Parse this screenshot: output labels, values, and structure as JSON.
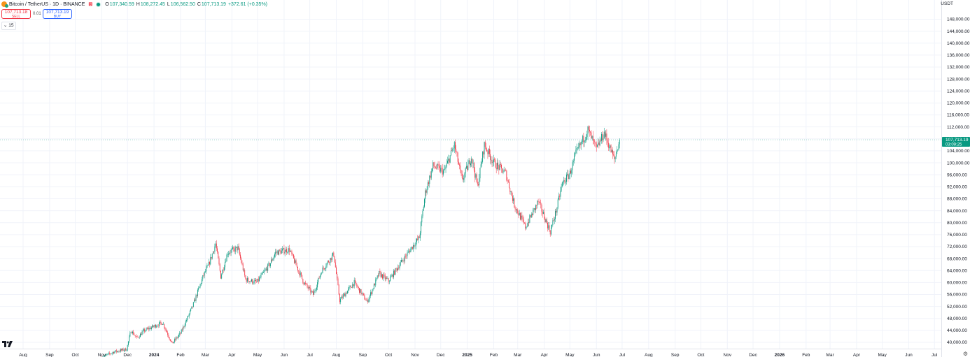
{
  "header": {
    "symbol": "Bitcoin / TetherUS · 1D · BINANCE",
    "o_label": "O",
    "o_value": "107,340.59",
    "h_label": "H",
    "h_value": "108,272.45",
    "l_label": "L",
    "l_value": "106,562.50",
    "c_label": "C",
    "c_value": "107,713.19",
    "change": "+372.61 (+0.35%)"
  },
  "trade": {
    "sell_price": "107,713.18",
    "sell_label": "SELL",
    "spread": "0.01",
    "buy_price": "107,713.19",
    "buy_label": "BUY"
  },
  "indicator": {
    "label": "15"
  },
  "price_axis": {
    "currency": "USDT",
    "last_price": "107,713.19",
    "countdown": "03:09:25"
  },
  "colors": {
    "up": "#089981",
    "down": "#f23645",
    "last_label": "#089981"
  },
  "chart_data": {
    "type": "candlestick",
    "ylim": [
      38000,
      150000
    ],
    "y_ticks": [
      "40,000.00",
      "44,000.00",
      "48,000.00",
      "52,000.00",
      "56,000.00",
      "60,000.00",
      "64,000.00",
      "68,000.00",
      "72,000.00",
      "76,000.00",
      "80,000.00",
      "84,000.00",
      "88,000.00",
      "92,000.00",
      "96,000.00",
      "100,000.00",
      "104,000.00",
      "108,000.00",
      "112,000.00",
      "116,000.00",
      "120,000.00",
      "124,000.00",
      "128,000.00",
      "132,000.00",
      "136,000.00",
      "140,000.00",
      "144,000.00",
      "148,000.00"
    ],
    "x_ticks": [
      "Aug",
      "Sep",
      "Oct",
      "Nov",
      "Dec",
      "2024",
      "Feb",
      "Mar",
      "Apr",
      "May",
      "Jun",
      "Jul",
      "Aug",
      "Sep",
      "Oct",
      "Nov",
      "Dec",
      "2025",
      "Feb",
      "Mar",
      "Apr",
      "May",
      "Jun",
      "Jul",
      "Aug",
      "Sep",
      "Oct",
      "Nov",
      "Dec",
      "2026",
      "Feb",
      "Mar",
      "Apr",
      "May",
      "Jun",
      "Jul"
    ],
    "x_tick_bold": [
      "2024",
      "2025",
      "2026"
    ],
    "close_path": [
      [
        "2023-11-01",
        35000
      ],
      [
        "2023-11-15",
        36800
      ],
      [
        "2023-11-30",
        37700
      ],
      [
        "2023-12-05",
        44000
      ],
      [
        "2023-12-12",
        41400
      ],
      [
        "2023-12-20",
        43800
      ],
      [
        "2024-01-02",
        45500
      ],
      [
        "2024-01-11",
        46600
      ],
      [
        "2024-01-22",
        39600
      ],
      [
        "2024-02-01",
        43000
      ],
      [
        "2024-02-15",
        52000
      ],
      [
        "2024-02-28",
        62500
      ],
      [
        "2024-03-05",
        66000
      ],
      [
        "2024-03-13",
        73000
      ],
      [
        "2024-03-19",
        62000
      ],
      [
        "2024-03-27",
        70000
      ],
      [
        "2024-04-08",
        71500
      ],
      [
        "2024-04-17",
        61000
      ],
      [
        "2024-04-30",
        60000
      ],
      [
        "2024-05-15",
        66000
      ],
      [
        "2024-05-22",
        70000
      ],
      [
        "2024-06-07",
        71000
      ],
      [
        "2024-06-24",
        60000
      ],
      [
        "2024-07-05",
        56000
      ],
      [
        "2024-07-15",
        64000
      ],
      [
        "2024-07-29",
        69500
      ],
      [
        "2024-08-05",
        54000
      ],
      [
        "2024-08-22",
        60000
      ],
      [
        "2024-09-06",
        53500
      ],
      [
        "2024-09-20",
        63000
      ],
      [
        "2024-10-01",
        60500
      ],
      [
        "2024-10-14",
        66000
      ],
      [
        "2024-10-29",
        72000
      ],
      [
        "2024-11-06",
        75000
      ],
      [
        "2024-11-13",
        90000
      ],
      [
        "2024-11-22",
        99000
      ],
      [
        "2024-12-05",
        97000
      ],
      [
        "2024-12-17",
        106000
      ],
      [
        "2024-12-26",
        94000
      ],
      [
        "2025-01-06",
        102000
      ],
      [
        "2025-01-13",
        92000
      ],
      [
        "2025-01-21",
        106000
      ],
      [
        "2025-02-01",
        100000
      ],
      [
        "2025-02-15",
        96500
      ],
      [
        "2025-02-25",
        86000
      ],
      [
        "2025-03-10",
        78500
      ],
      [
        "2025-03-25",
        87000
      ],
      [
        "2025-04-08",
        77000
      ],
      [
        "2025-04-15",
        84000
      ],
      [
        "2025-04-22",
        93000
      ],
      [
        "2025-05-01",
        96500
      ],
      [
        "2025-05-08",
        103000
      ],
      [
        "2025-05-22",
        111000
      ],
      [
        "2025-06-01",
        104500
      ],
      [
        "2025-06-10",
        110000
      ],
      [
        "2025-06-22",
        101000
      ],
      [
        "2025-06-28",
        107713
      ]
    ]
  }
}
